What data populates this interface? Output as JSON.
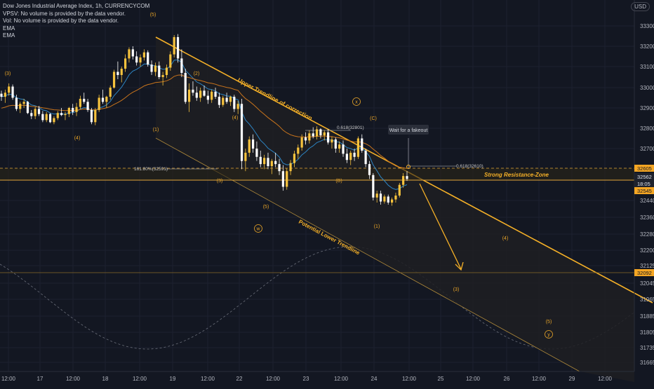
{
  "header": {
    "title": "Dow Jones Industrial Average Index, 1h, CURRENCYCOM",
    "lines": [
      "VPSV: No volume is provided by the data vendor.",
      "Vol: No volume is provided by the data vendor.",
      "EMA",
      "EMA"
    ],
    "currency": "USD"
  },
  "colors": {
    "background": "#131722",
    "bull": "#f7c33d",
    "bear": "#ffffff",
    "trendline": "#f5b027",
    "channel_fill": "#1e1f22",
    "ema_fast": "#2d84c2",
    "ema_slow": "#c9741c",
    "wave_label": "#e7a428",
    "price_tag": "#f5a623",
    "axis_text": "#b2b5be"
  },
  "chart_data": {
    "type": "candlestick",
    "symbol": "Dow Jones Industrial Average Index",
    "interval": "1h",
    "ylim": [
      31600,
      33380
    ],
    "y_ticks": [
      33300,
      33200,
      33100,
      33000,
      32900,
      32800,
      32700,
      32440,
      32360,
      32280,
      32200,
      32125,
      32045,
      31965,
      31885,
      31805,
      31735,
      31665
    ],
    "x_ticks": [
      "12:00",
      "17",
      "12:00",
      "18",
      "12:00",
      "19",
      "12:00",
      "22",
      "12:00",
      "23",
      "12:00",
      "24",
      "12:00",
      "25",
      "12:00",
      "26",
      "12:00",
      "29",
      "12:00"
    ],
    "price_tags": [
      {
        "label": "32605",
        "value": 32605
      },
      {
        "label": "32562",
        "value": 32562
      },
      {
        "label": "18:05",
        "value": 32536
      },
      {
        "label": "32545",
        "value": 32511
      },
      {
        "label": "32092",
        "value": 32092
      }
    ],
    "candles_ohlc": [
      [
        32970,
        32985,
        32935,
        32955
      ],
      [
        32955,
        32990,
        32925,
        32975
      ],
      [
        32975,
        33020,
        32960,
        33005
      ],
      [
        33005,
        33015,
        32940,
        32950
      ],
      [
        32950,
        32965,
        32885,
        32895
      ],
      [
        32895,
        32930,
        32875,
        32920
      ],
      [
        32920,
        32945,
        32900,
        32930
      ],
      [
        32930,
        32935,
        32870,
        32875
      ],
      [
        32875,
        32890,
        32845,
        32860
      ],
      [
        32860,
        32905,
        32845,
        32895
      ],
      [
        32895,
        32910,
        32860,
        32870
      ],
      [
        32870,
        32885,
        32830,
        32840
      ],
      [
        32840,
        32880,
        32830,
        32870
      ],
      [
        32870,
        32875,
        32825,
        32830
      ],
      [
        32830,
        32860,
        32820,
        32850
      ],
      [
        32850,
        32885,
        32840,
        32875
      ],
      [
        32875,
        32900,
        32860,
        32865
      ],
      [
        32865,
        32880,
        32840,
        32870
      ],
      [
        32870,
        32905,
        32855,
        32900
      ],
      [
        32900,
        32920,
        32865,
        32880
      ],
      [
        32880,
        32925,
        32860,
        32905
      ],
      [
        32905,
        32960,
        32895,
        32945
      ],
      [
        32945,
        32975,
        32920,
        32930
      ],
      [
        32930,
        32945,
        32880,
        32890
      ],
      [
        32890,
        32900,
        32820,
        32830
      ],
      [
        32830,
        32900,
        32815,
        32890
      ],
      [
        32890,
        32965,
        32880,
        32950
      ],
      [
        32950,
        32990,
        32920,
        32930
      ],
      [
        32930,
        32960,
        32900,
        32955
      ],
      [
        32955,
        33010,
        32940,
        33000
      ],
      [
        33000,
        33085,
        32995,
        33075
      ],
      [
        33075,
        33125,
        33040,
        33060
      ],
      [
        33060,
        33100,
        33025,
        33090
      ],
      [
        33090,
        33160,
        33075,
        33140
      ],
      [
        33140,
        33195,
        33120,
        33185
      ],
      [
        33185,
        33200,
        33135,
        33150
      ],
      [
        33150,
        33175,
        33105,
        33120
      ],
      [
        33120,
        33160,
        33100,
        33145
      ],
      [
        33145,
        33185,
        33130,
        33170
      ],
      [
        33170,
        33180,
        33100,
        33110
      ],
      [
        33110,
        33130,
        33060,
        33075
      ],
      [
        33075,
        33120,
        33055,
        33105
      ],
      [
        33105,
        33125,
        33040,
        33050
      ],
      [
        33050,
        33075,
        33010,
        33060
      ],
      [
        33060,
        33110,
        33045,
        33095
      ],
      [
        33095,
        33175,
        33080,
        33160
      ],
      [
        33160,
        33255,
        33145,
        33245
      ],
      [
        33245,
        33260,
        33120,
        33140
      ],
      [
        33140,
        33185,
        33050,
        33070
      ],
      [
        33070,
        33090,
        32920,
        32930
      ],
      [
        32930,
        33020,
        32880,
        32990
      ],
      [
        32990,
        33030,
        32960,
        32975
      ],
      [
        32975,
        33005,
        32935,
        32950
      ],
      [
        32950,
        33000,
        32930,
        32985
      ],
      [
        32985,
        33010,
        32955,
        32960
      ],
      [
        32960,
        32985,
        32920,
        32940
      ],
      [
        32940,
        32990,
        32925,
        32980
      ],
      [
        32980,
        33000,
        32945,
        32955
      ],
      [
        32955,
        32975,
        32900,
        32915
      ],
      [
        32915,
        32960,
        32905,
        32950
      ],
      [
        32950,
        32975,
        32920,
        32930
      ],
      [
        32930,
        32960,
        32910,
        32955
      ],
      [
        32955,
        32965,
        32880,
        32895
      ],
      [
        32895,
        32935,
        32870,
        32920
      ],
      [
        32920,
        32945,
        32600,
        32640
      ],
      [
        32640,
        32700,
        32590,
        32680
      ],
      [
        32680,
        32760,
        32660,
        32745
      ],
      [
        32745,
        32770,
        32680,
        32700
      ],
      [
        32700,
        32735,
        32640,
        32660
      ],
      [
        32660,
        32690,
        32610,
        32625
      ],
      [
        32625,
        32670,
        32600,
        32655
      ],
      [
        32655,
        32680,
        32600,
        32615
      ],
      [
        32615,
        32650,
        32575,
        32640
      ],
      [
        32640,
        32680,
        32610,
        32625
      ],
      [
        32625,
        32650,
        32570,
        32590
      ],
      [
        32590,
        32620,
        32490,
        32510
      ],
      [
        32510,
        32605,
        32495,
        32590
      ],
      [
        32590,
        32645,
        32570,
        32630
      ],
      [
        32630,
        32690,
        32610,
        32675
      ],
      [
        32675,
        32720,
        32650,
        32705
      ],
      [
        32705,
        32770,
        32690,
        32755
      ],
      [
        32755,
        32780,
        32720,
        32740
      ],
      [
        32740,
        32790,
        32725,
        32775
      ],
      [
        32775,
        32805,
        32750,
        32760
      ],
      [
        32760,
        32810,
        32745,
        32795
      ],
      [
        32795,
        32800,
        32750,
        32765
      ],
      [
        32765,
        32790,
        32740,
        32780
      ],
      [
        32780,
        32795,
        32720,
        32730
      ],
      [
        32730,
        32760,
        32700,
        32745
      ],
      [
        32745,
        32755,
        32680,
        32700
      ],
      [
        32700,
        32735,
        32680,
        32720
      ],
      [
        32720,
        32740,
        32660,
        32675
      ],
      [
        32675,
        32700,
        32630,
        32645
      ],
      [
        32645,
        32690,
        32620,
        32680
      ],
      [
        32680,
        32700,
        32640,
        32660
      ],
      [
        32660,
        32760,
        32650,
        32750
      ],
      [
        32750,
        32770,
        32680,
        32690
      ],
      [
        32690,
        32700,
        32610,
        32625
      ],
      [
        32625,
        32640,
        32550,
        32570
      ],
      [
        32570,
        32580,
        32440,
        32455
      ],
      [
        32455,
        32490,
        32430,
        32475
      ],
      [
        32475,
        32490,
        32420,
        32435
      ],
      [
        32435,
        32470,
        32425,
        32460
      ],
      [
        32460,
        32470,
        32420,
        32430
      ],
      [
        32430,
        32455,
        32415,
        32445
      ],
      [
        32445,
        32480,
        32430,
        32465
      ],
      [
        32465,
        32530,
        32455,
        32520
      ],
      [
        32520,
        32580,
        32505,
        32565
      ],
      [
        32565,
        32590,
        32540,
        32550
      ]
    ],
    "trendlines": [
      {
        "label": "Upper Trendline of correction"
      },
      {
        "label": "Potential Lower Trendline"
      }
    ],
    "horizontal_levels": [
      {
        "label": "Strong Resistance-Zone",
        "from": 32545,
        "to": 32605
      },
      {
        "label": "0.618(32610)",
        "value": 32610
      },
      {
        "label": "161.80%(32591)",
        "value": 32591
      },
      {
        "label": "0.618(32801)",
        "value": 32801
      }
    ],
    "annotations": [
      {
        "text": "Wait for a fakeout"
      },
      {
        "text": "(5)"
      },
      {
        "text": "(3)"
      },
      {
        "text": "(4)"
      },
      {
        "text": "(1)"
      },
      {
        "text": "(2)"
      },
      {
        "text": "(3)"
      },
      {
        "text": "(4)"
      },
      {
        "text": "(5)"
      },
      {
        "text": "(C)"
      },
      {
        "text": "(B)"
      },
      {
        "text": "(1)"
      },
      {
        "text": "(4)"
      },
      {
        "text": "(3)"
      },
      {
        "text": "(5)"
      },
      {
        "text": "x"
      },
      {
        "text": "w"
      },
      {
        "text": "y"
      }
    ]
  }
}
